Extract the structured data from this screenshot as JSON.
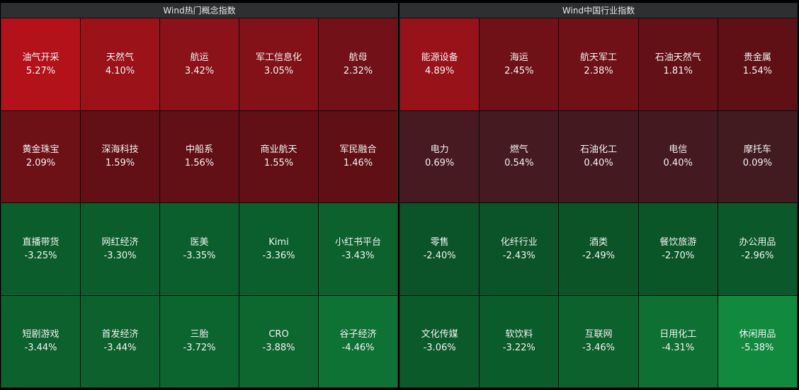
{
  "chart_data": [
    {
      "type": "heatmap",
      "title": "Wind热门概念指数",
      "cells": [
        {
          "name": "油气开采",
          "value": 5.27,
          "label": "5.27%",
          "color": "#b3121b"
        },
        {
          "name": "天然气",
          "value": 4.1,
          "label": "4.10%",
          "color": "#9b1219"
        },
        {
          "name": "航运",
          "value": 3.42,
          "label": "3.42%",
          "color": "#8a1218"
        },
        {
          "name": "军工信息化",
          "value": 3.05,
          "label": "3.05%",
          "color": "#821218"
        },
        {
          "name": "航母",
          "value": 2.32,
          "label": "2.32%",
          "color": "#721117"
        },
        {
          "name": "黄金珠宝",
          "value": 2.09,
          "label": "2.09%",
          "color": "#6d1116"
        },
        {
          "name": "深海科技",
          "value": 1.59,
          "label": "1.59%",
          "color": "#621015"
        },
        {
          "name": "中船系",
          "value": 1.56,
          "label": "1.56%",
          "color": "#621015"
        },
        {
          "name": "商业航天",
          "value": 1.55,
          "label": "1.55%",
          "color": "#621015"
        },
        {
          "name": "军民融合",
          "value": 1.46,
          "label": "1.46%",
          "color": "#601015"
        },
        {
          "name": "直播带货",
          "value": -3.25,
          "label": "-3.25%",
          "color": "#0b5e2b"
        },
        {
          "name": "网红经济",
          "value": -3.3,
          "label": "-3.30%",
          "color": "#0b5e2b"
        },
        {
          "name": "医美",
          "value": -3.35,
          "label": "-3.35%",
          "color": "#0b5f2c"
        },
        {
          "name": "Kimi",
          "value": -3.36,
          "label": "-3.36%",
          "color": "#0b5f2c"
        },
        {
          "name": "小红书平台",
          "value": -3.43,
          "label": "-3.43%",
          "color": "#0c612d"
        },
        {
          "name": "短剧游戏",
          "value": -3.44,
          "label": "-3.44%",
          "color": "#0c612d"
        },
        {
          "name": "首发经济",
          "value": -3.44,
          "label": "-3.44%",
          "color": "#0c612d"
        },
        {
          "name": "三胎",
          "value": -3.72,
          "label": "-3.72%",
          "color": "#0c652f"
        },
        {
          "name": "CRO",
          "value": -3.88,
          "label": "-3.88%",
          "color": "#0d6830"
        },
        {
          "name": "谷子经济",
          "value": -4.46,
          "label": "-4.46%",
          "color": "#0f7235"
        }
      ]
    },
    {
      "type": "heatmap",
      "title": "Wind中国行业指数",
      "cells": [
        {
          "name": "能源设备",
          "value": 4.89,
          "label": "4.89%",
          "color": "#98121a"
        },
        {
          "name": "海运",
          "value": 2.45,
          "label": "2.45%",
          "color": "#701117"
        },
        {
          "name": "航天军工",
          "value": 2.38,
          "label": "2.38%",
          "color": "#6f1117"
        },
        {
          "name": "石油天然气",
          "value": 1.81,
          "label": "1.81%",
          "color": "#631016"
        },
        {
          "name": "贵金属",
          "value": 1.54,
          "label": "1.54%",
          "color": "#5e1015"
        },
        {
          "name": "电力",
          "value": 0.69,
          "label": "0.69%",
          "color": "#461a20"
        },
        {
          "name": "燃气",
          "value": 0.54,
          "label": "0.54%",
          "color": "#451a20"
        },
        {
          "name": "石油化工",
          "value": 0.4,
          "label": "0.40%",
          "color": "#441a20"
        },
        {
          "name": "电信",
          "value": 0.4,
          "label": "0.40%",
          "color": "#441a20"
        },
        {
          "name": "摩托车",
          "value": 0.09,
          "label": "0.09%",
          "color": "#411b20"
        },
        {
          "name": "零售",
          "value": -2.4,
          "label": "-2.40%",
          "color": "#0b5328"
        },
        {
          "name": "化纤行业",
          "value": -2.43,
          "label": "-2.43%",
          "color": "#0b5328"
        },
        {
          "name": "酒类",
          "value": -2.49,
          "label": "-2.49%",
          "color": "#0b5428"
        },
        {
          "name": "餐饮旅游",
          "value": -2.7,
          "label": "-2.70%",
          "color": "#0b5629"
        },
        {
          "name": "办公用品",
          "value": -2.96,
          "label": "-2.96%",
          "color": "#0b592a"
        },
        {
          "name": "文化传媒",
          "value": -3.06,
          "label": "-3.06%",
          "color": "#0b5a2a"
        },
        {
          "name": "软饮料",
          "value": -3.22,
          "label": "-3.22%",
          "color": "#0b5c2b"
        },
        {
          "name": "互联网",
          "value": -3.46,
          "label": "-3.46%",
          "color": "#0c612d"
        },
        {
          "name": "日用化工",
          "value": -4.31,
          "label": "-4.31%",
          "color": "#0e7033"
        },
        {
          "name": "休闲用品",
          "value": -5.38,
          "label": "-5.38%",
          "color": "#118a3e"
        }
      ]
    }
  ]
}
